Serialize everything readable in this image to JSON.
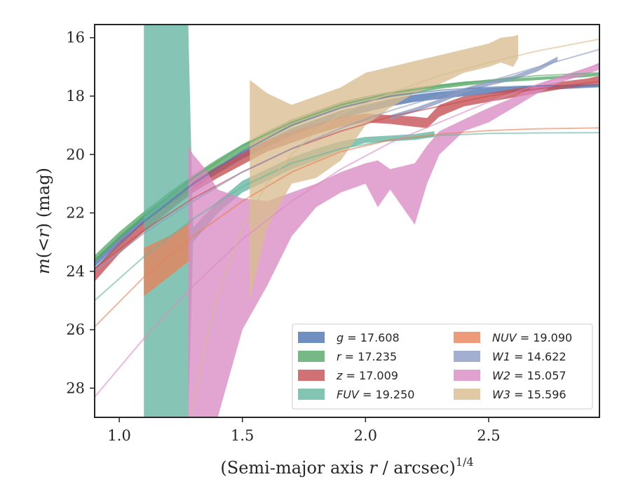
{
  "chart_data": {
    "type": "line",
    "title": "",
    "xlabel": "(Semi-major axis r / arcsec)^1/4",
    "xlabel_parts": {
      "main": "(Semi-major axis ",
      "var": "r",
      "rest": " / arcsec)",
      "sup": "1/4"
    },
    "ylabel": "m(<r) (mag)",
    "ylabel_parts": {
      "m": "m",
      "open": "(",
      "lt": "<",
      "r": "r",
      "close": ")",
      "unit": " (mag)"
    },
    "xlim": [
      0.9,
      2.95
    ],
    "ylim": [
      29.0,
      15.55
    ],
    "y_inverted": true,
    "xticks": [
      1.0,
      1.5,
      2.0,
      2.5
    ],
    "xtick_labels": [
      "1.0",
      "1.5",
      "2.0",
      "2.5"
    ],
    "yticks": [
      16,
      18,
      20,
      22,
      24,
      26,
      28
    ],
    "ytick_labels": [
      "16",
      "18",
      "20",
      "22",
      "24",
      "26",
      "28"
    ],
    "grid": false,
    "legend_position": "lower-right",
    "series": [
      {
        "key": "g",
        "name": "g = 17.608",
        "name_var": "g",
        "name_value": "= 17.608",
        "color": "#4c72b0",
        "band_x": [
          0.9,
          1.0,
          1.1,
          1.2,
          1.3,
          1.4,
          1.5,
          1.6,
          1.7,
          1.8,
          1.9,
          2.0,
          2.1,
          2.2,
          2.3,
          2.4,
          2.5,
          2.6,
          2.7,
          2.8,
          2.9,
          2.95
        ],
        "band_lo": [
          23.6,
          22.8,
          22.1,
          21.5,
          20.9,
          20.4,
          19.9,
          19.5,
          19.1,
          18.8,
          18.5,
          18.3,
          18.1,
          17.95,
          17.85,
          17.78,
          17.72,
          17.68,
          17.64,
          17.62,
          17.61,
          17.6
        ],
        "band_hi": [
          23.85,
          23.05,
          22.35,
          21.75,
          21.15,
          20.65,
          20.15,
          19.75,
          19.35,
          19.05,
          18.75,
          18.55,
          18.35,
          18.2,
          18.1,
          18.0,
          17.92,
          17.86,
          17.8,
          17.76,
          17.72,
          17.7
        ],
        "model_x": [
          0.9,
          1.1,
          1.3,
          1.5,
          1.7,
          1.9,
          2.1,
          2.3,
          2.5,
          2.7,
          2.95
        ],
        "model_y": [
          23.9,
          22.3,
          21.0,
          19.9,
          19.0,
          18.4,
          18.0,
          17.8,
          17.7,
          17.65,
          17.62
        ]
      },
      {
        "key": "r",
        "name": "r = 17.235",
        "name_var": "r",
        "name_value": "= 17.235",
        "color": "#55a868",
        "band_x": [
          0.9,
          1.0,
          1.1,
          1.2,
          1.3,
          1.4,
          1.5,
          1.6,
          1.7,
          1.8,
          1.9,
          2.0,
          2.1,
          2.2,
          2.3,
          2.4,
          2.5,
          2.6,
          2.7,
          2.8,
          2.9,
          2.95
        ],
        "band_lo": [
          23.45,
          22.65,
          21.95,
          21.3,
          20.7,
          20.15,
          19.65,
          19.2,
          18.8,
          18.5,
          18.2,
          18.0,
          17.85,
          17.7,
          17.6,
          17.5,
          17.45,
          17.4,
          17.35,
          17.3,
          17.25,
          17.2
        ],
        "band_hi": [
          23.7,
          22.9,
          22.2,
          21.55,
          20.95,
          20.4,
          19.9,
          19.45,
          19.05,
          18.7,
          18.4,
          18.2,
          18.05,
          17.9,
          17.75,
          17.65,
          17.55,
          17.5,
          17.45,
          17.4,
          17.35,
          17.3
        ],
        "model_x": [
          0.9,
          1.1,
          1.3,
          1.5,
          1.7,
          1.9,
          2.1,
          2.3,
          2.5,
          2.7,
          2.95
        ],
        "model_y": [
          23.6,
          22.1,
          20.8,
          19.7,
          18.9,
          18.3,
          17.9,
          17.65,
          17.45,
          17.3,
          17.2
        ]
      },
      {
        "key": "z",
        "name": "z = 17.009",
        "name_var": "z",
        "name_value": "= 17.009",
        "color": "#c44e52",
        "band_x": [
          0.9,
          1.0,
          1.1,
          1.2,
          1.3,
          1.4,
          1.5,
          1.6,
          1.7,
          1.8,
          1.9,
          2.0,
          2.1,
          2.2,
          2.25,
          2.3,
          2.4,
          2.5,
          2.6,
          2.7,
          2.8,
          2.9,
          2.95
        ],
        "band_lo": [
          23.9,
          23.0,
          22.3,
          21.6,
          20.9,
          20.4,
          19.95,
          19.5,
          19.2,
          18.95,
          18.7,
          18.6,
          18.65,
          18.7,
          18.75,
          18.3,
          18.0,
          17.9,
          17.75,
          17.65,
          17.5,
          17.4,
          17.3
        ],
        "band_hi": [
          24.35,
          23.4,
          22.65,
          21.95,
          21.3,
          20.8,
          20.35,
          19.9,
          19.6,
          19.3,
          19.05,
          18.9,
          18.95,
          19.05,
          19.1,
          18.7,
          18.35,
          18.2,
          18.05,
          17.9,
          17.75,
          17.65,
          17.6
        ],
        "model_x": [
          0.9,
          1.1,
          1.3,
          1.5,
          1.7,
          1.9,
          2.1,
          2.3,
          2.5,
          2.7,
          2.95
        ],
        "model_y": [
          23.9,
          22.6,
          21.5,
          20.6,
          19.8,
          19.2,
          18.7,
          18.35,
          18.0,
          17.75,
          17.5
        ]
      },
      {
        "key": "FUV",
        "name": "FUV = 19.250",
        "name_var": "FUV",
        "name_value": "= 19.250",
        "color": "#64b5a0",
        "band_x": [
          1.1,
          1.12,
          1.2,
          1.28,
          1.3,
          1.4,
          1.5,
          1.6,
          1.7,
          1.8,
          1.9,
          2.0,
          2.1,
          2.2,
          2.28
        ],
        "band_lo": [
          15.55,
          15.55,
          15.55,
          15.55,
          22.5,
          21.6,
          20.9,
          20.5,
          20.1,
          19.8,
          19.55,
          19.4,
          19.35,
          19.3,
          19.2
        ],
        "band_hi": [
          29.0,
          29.0,
          29.0,
          29.0,
          23.0,
          22.0,
          21.3,
          20.9,
          20.5,
          20.2,
          19.85,
          19.6,
          19.55,
          19.5,
          19.4
        ],
        "model_x": [
          0.9,
          1.1,
          1.3,
          1.5,
          1.7,
          1.9,
          2.1,
          2.3,
          2.5,
          2.7,
          2.95
        ],
        "model_y": [
          25.0,
          23.5,
          22.2,
          21.1,
          20.3,
          19.8,
          19.5,
          19.35,
          19.28,
          19.26,
          19.25
        ]
      },
      {
        "key": "NUV",
        "name": "NUV = 19.090",
        "name_var": "NUV",
        "name_value": "= 19.090",
        "color": "#e8825a",
        "band_x": [
          1.1,
          1.2,
          1.29
        ],
        "band_lo": [
          23.2,
          22.8,
          22.3
        ],
        "band_hi": [
          24.85,
          24.2,
          23.6
        ],
        "model_x": [
          0.9,
          1.1,
          1.3,
          1.5,
          1.7,
          1.9,
          2.1,
          2.3,
          2.5,
          2.7,
          2.95
        ],
        "model_y": [
          25.9,
          24.2,
          22.8,
          21.6,
          20.6,
          19.9,
          19.5,
          19.3,
          19.18,
          19.12,
          19.09
        ]
      },
      {
        "key": "W1",
        "name": "W1 = 14.622",
        "name_var": "W1",
        "name_value": "= 14.622",
        "color": "#8c9bc2",
        "band_x": [
          2.1,
          2.2,
          2.3,
          2.4,
          2.5,
          2.6,
          2.7,
          2.78
        ],
        "band_lo": [
          18.65,
          18.4,
          18.1,
          17.75,
          17.5,
          17.3,
          17.0,
          16.65
        ],
        "band_hi": [
          18.8,
          18.55,
          18.25,
          17.9,
          17.65,
          17.45,
          17.15,
          16.8
        ],
        "model_x": [
          0.9,
          1.1,
          1.3,
          1.5,
          1.7,
          1.9,
          2.1,
          2.3,
          2.5,
          2.7,
          2.95
        ],
        "model_y": [
          24.0,
          22.7,
          21.6,
          20.6,
          19.8,
          19.1,
          18.5,
          18.0,
          17.5,
          17.0,
          16.4
        ]
      },
      {
        "key": "W2",
        "name": "W2 = 15.057",
        "name_var": "W2",
        "name_value": "= 15.057",
        "color": "#da8bc3",
        "band_x": [
          1.28,
          1.3,
          1.35,
          1.4,
          1.5,
          1.6,
          1.7,
          1.8,
          1.9,
          2.0,
          2.05,
          2.1,
          2.2,
          2.25,
          2.3,
          2.4,
          2.5,
          2.6,
          2.7,
          2.8,
          2.9,
          2.95
        ],
        "band_lo": [
          19.7,
          20.0,
          20.5,
          21.2,
          21.5,
          21.6,
          21.3,
          21.0,
          20.6,
          20.3,
          20.2,
          20.5,
          20.3,
          19.7,
          19.2,
          18.8,
          18.4,
          18.05,
          17.6,
          17.3,
          17.05,
          16.85
        ],
        "band_hi": [
          29.0,
          29.0,
          29.0,
          29.0,
          26.0,
          24.5,
          22.8,
          21.8,
          21.3,
          21.0,
          21.8,
          21.2,
          22.4,
          21.0,
          20.0,
          19.2,
          18.9,
          18.4,
          17.9,
          17.5,
          17.25,
          17.1
        ],
        "model_x": [
          0.9,
          1.1,
          1.3,
          1.5,
          1.7,
          1.9,
          2.1,
          2.3,
          2.5,
          2.7,
          2.95
        ],
        "model_y": [
          28.3,
          26.3,
          24.5,
          22.9,
          21.6,
          20.5,
          19.6,
          18.9,
          18.2,
          17.6,
          16.9
        ]
      },
      {
        "key": "W3",
        "name": "W3 = 15.596",
        "name_var": "W3",
        "name_value": "= 15.596",
        "color": "#d9bc8f",
        "band_x": [
          1.53,
          1.6,
          1.7,
          1.8,
          1.9,
          2.0,
          2.1,
          2.2,
          2.3,
          2.4,
          2.5,
          2.55,
          2.6,
          2.62
        ],
        "band_lo": [
          17.45,
          17.9,
          18.3,
          18.0,
          17.7,
          17.2,
          17.0,
          16.8,
          16.6,
          16.4,
          16.2,
          16.0,
          15.95,
          15.9
        ],
        "band_hi": [
          25.0,
          22.5,
          21.0,
          20.8,
          20.2,
          19.0,
          18.4,
          17.9,
          17.6,
          17.2,
          17.0,
          16.85,
          17.0,
          16.7
        ],
        "model_x": [
          1.29,
          1.35,
          1.4,
          1.5,
          1.6,
          1.7,
          1.8,
          1.9,
          2.1,
          2.3,
          2.5,
          2.7,
          2.95
        ],
        "model_y": [
          29.0,
          26.5,
          24.8,
          22.5,
          21.0,
          20.0,
          19.2,
          18.6,
          17.9,
          17.3,
          16.85,
          16.45,
          16.05
        ]
      }
    ]
  }
}
